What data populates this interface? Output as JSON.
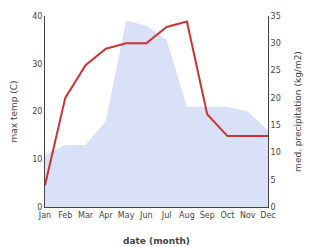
{
  "chart_data": {
    "type": "line",
    "xlabel": "date (month)",
    "ylabel": "max temp (C)",
    "y2label": "med. precipitation (kg/m2)",
    "categories": [
      "Jan",
      "Feb",
      "Mar",
      "Apr",
      "May",
      "Jun",
      "Jul",
      "Aug",
      "Sep",
      "Oct",
      "Nov",
      "Dec"
    ],
    "series": [
      {
        "type": "area",
        "color": "#b8c8f0",
        "values": [
          11,
          13,
          13,
          18,
          39,
          38,
          35,
          21,
          21,
          21,
          20,
          16
        ]
      },
      {
        "type": "line",
        "color": "#cc3333",
        "axis": "y2",
        "values": [
          4,
          20,
          26,
          29,
          30,
          30,
          33,
          34,
          17,
          13,
          13,
          13
        ]
      }
    ],
    "ylim": [
      0,
      40
    ],
    "yticks": [
      0,
      10,
      20,
      30,
      40
    ],
    "y2lim": [
      0,
      35
    ],
    "y2ticks": [
      0,
      5,
      10,
      15,
      20,
      25,
      30,
      35
    ],
    "grid": false
  }
}
